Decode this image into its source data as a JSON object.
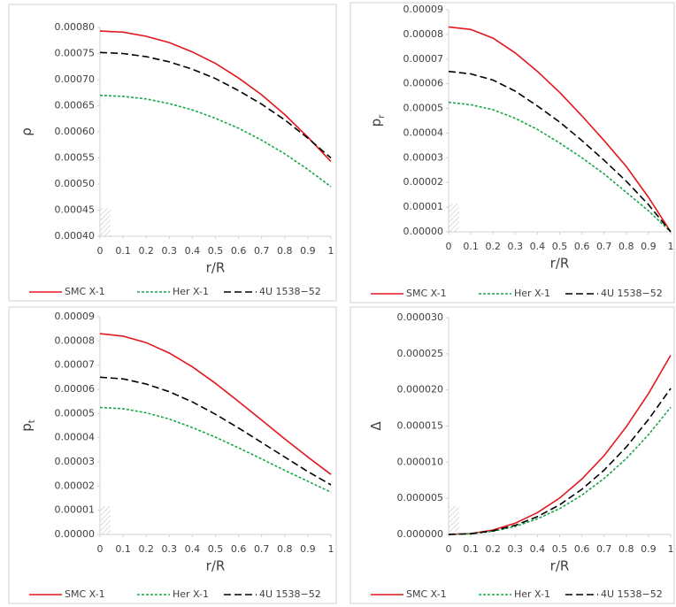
{
  "chart_data": [
    {
      "type": "line",
      "xlabel": "r/R",
      "ylabel": "ρ",
      "x": [
        0,
        0.1,
        0.2,
        0.3,
        0.4,
        0.5,
        0.6,
        0.7,
        0.8,
        0.9,
        1
      ],
      "xlim": [
        0,
        1
      ],
      "xticks": [
        0,
        0.1,
        0.2,
        0.3,
        0.4,
        0.5,
        0.6,
        0.7,
        0.8,
        0.9,
        1
      ],
      "ylim": [
        0.0004,
        0.0008
      ],
      "yticks": [
        {
          "value": 0.0004,
          "label": "0.00040"
        },
        {
          "value": 0.00045,
          "label": "0.00045"
        },
        {
          "value": 0.0005,
          "label": "0.00050"
        },
        {
          "value": 0.00055,
          "label": "0.00055"
        },
        {
          "value": 0.0006,
          "label": "0.00060"
        },
        {
          "value": 0.00065,
          "label": "0.00065"
        },
        {
          "value": 0.0007,
          "label": "0.00070"
        },
        {
          "value": 0.00075,
          "label": "0.00075"
        },
        {
          "value": 0.0008,
          "label": "0.00080"
        }
      ],
      "series": [
        {
          "name": "SMC X-1",
          "color": "#e3161d",
          "line_style": "solid",
          "values": [
            0.000793,
            0.000791,
            0.000783,
            0.000771,
            0.000753,
            0.000731,
            0.000703,
            0.000671,
            0.000633,
            0.00059,
            0.000543
          ]
        },
        {
          "name": "Her X-1",
          "color": "#1aa64a",
          "line_style": "dotted",
          "values": [
            0.00067,
            0.000668,
            0.000663,
            0.000654,
            0.000642,
            0.000626,
            0.000607,
            0.000584,
            0.000558,
            0.000528,
            0.000495
          ]
        },
        {
          "name": "4U 1538−52",
          "color": "#000000",
          "line_style": "dashed",
          "values": [
            0.000752,
            0.00075,
            0.000744,
            0.000734,
            0.00072,
            0.000702,
            0.000679,
            0.000653,
            0.000623,
            0.000588,
            0.00055
          ]
        }
      ]
    },
    {
      "type": "line",
      "xlabel": "r/R",
      "ylabel": "p",
      "ylabel_sub": "r",
      "x": [
        0,
        0.1,
        0.2,
        0.3,
        0.4,
        0.5,
        0.6,
        0.7,
        0.8,
        0.9,
        1
      ],
      "xlim": [
        0,
        1
      ],
      "xticks": [
        0,
        0.1,
        0.2,
        0.3,
        0.4,
        0.5,
        0.6,
        0.7,
        0.8,
        0.9,
        1
      ],
      "ylim": [
        0,
        9e-05
      ],
      "yticks": [
        {
          "value": 0,
          "label": "0.00000"
        },
        {
          "value": 1e-05,
          "label": "0.00001"
        },
        {
          "value": 2e-05,
          "label": "0.00002"
        },
        {
          "value": 3e-05,
          "label": "0.00003"
        },
        {
          "value": 4e-05,
          "label": "0.00004"
        },
        {
          "value": 5e-05,
          "label": "0.00005"
        },
        {
          "value": 6e-05,
          "label": "0.00006"
        },
        {
          "value": 7e-05,
          "label": "0.00007"
        },
        {
          "value": 8e-05,
          "label": "0.00008"
        },
        {
          "value": 9e-05,
          "label": "0.00009"
        }
      ],
      "series": [
        {
          "name": "SMC X-1",
          "color": "#e3161d",
          "line_style": "solid",
          "values": [
            8.3e-05,
            8.2e-05,
            7.85e-05,
            7.25e-05,
            6.5e-05,
            5.65e-05,
            4.7e-05,
            3.7e-05,
            2.65e-05,
            1.4e-05,
            0
          ]
        },
        {
          "name": "Her X-1",
          "color": "#1aa64a",
          "line_style": "dotted",
          "values": [
            5.25e-05,
            5.15e-05,
            4.95e-05,
            4.6e-05,
            4.15e-05,
            3.6e-05,
            3e-05,
            2.35e-05,
            1.6e-05,
            8.5e-06,
            0
          ]
        },
        {
          "name": "4U 1538−52",
          "color": "#000000",
          "line_style": "dashed",
          "values": [
            6.5e-05,
            6.4e-05,
            6.15e-05,
            5.7e-05,
            5.1e-05,
            4.45e-05,
            3.7e-05,
            2.9e-05,
            2.05e-05,
            1.1e-05,
            0
          ]
        }
      ]
    },
    {
      "type": "line",
      "xlabel": "r/R",
      "ylabel": "p",
      "ylabel_sub": "t",
      "x": [
        0,
        0.1,
        0.2,
        0.3,
        0.4,
        0.5,
        0.6,
        0.7,
        0.8,
        0.9,
        1
      ],
      "xlim": [
        0,
        1
      ],
      "xticks": [
        0,
        0.1,
        0.2,
        0.3,
        0.4,
        0.5,
        0.6,
        0.7,
        0.8,
        0.9,
        1
      ],
      "ylim": [
        0,
        9e-05
      ],
      "yticks": [
        {
          "value": 0,
          "label": "0.00000"
        },
        {
          "value": 1e-05,
          "label": "0.00001"
        },
        {
          "value": 2e-05,
          "label": "0.00002"
        },
        {
          "value": 3e-05,
          "label": "0.00003"
        },
        {
          "value": 4e-05,
          "label": "0.00004"
        },
        {
          "value": 5e-05,
          "label": "0.00005"
        },
        {
          "value": 6e-05,
          "label": "0.00006"
        },
        {
          "value": 7e-05,
          "label": "0.00007"
        },
        {
          "value": 8e-05,
          "label": "0.00008"
        },
        {
          "value": 9e-05,
          "label": "0.00009"
        }
      ],
      "series": [
        {
          "name": "SMC X-1",
          "color": "#e3161d",
          "line_style": "solid",
          "values": [
            8.3e-05,
            8.2e-05,
            7.93e-05,
            7.5e-05,
            6.93e-05,
            6.25e-05,
            5.5e-05,
            4.73e-05,
            3.95e-05,
            3.2e-05,
            2.48e-05
          ]
        },
        {
          "name": "Her X-1",
          "color": "#1aa64a",
          "line_style": "dotted",
          "values": [
            5.25e-05,
            5.2e-05,
            5.03e-05,
            4.77e-05,
            4.42e-05,
            4.02e-05,
            3.58e-05,
            3.12e-05,
            2.65e-05,
            2.2e-05,
            1.75e-05
          ]
        },
        {
          "name": "4U 1538−52",
          "color": "#000000",
          "line_style": "dashed",
          "values": [
            6.5e-05,
            6.43e-05,
            6.22e-05,
            5.9e-05,
            5.48e-05,
            4.97e-05,
            4.4e-05,
            3.8e-05,
            3.2e-05,
            2.6e-05,
            2.05e-05
          ]
        }
      ]
    },
    {
      "type": "line",
      "xlabel": "r/R",
      "ylabel": "Δ",
      "x": [
        0,
        0.1,
        0.2,
        0.3,
        0.4,
        0.5,
        0.6,
        0.7,
        0.8,
        0.9,
        1
      ],
      "xlim": [
        0,
        1
      ],
      "xticks": [
        0,
        0.1,
        0.2,
        0.3,
        0.4,
        0.5,
        0.6,
        0.7,
        0.8,
        0.9,
        1
      ],
      "ylim": [
        0,
        3e-05
      ],
      "yticks": [
        {
          "value": 0,
          "label": "0.000000"
        },
        {
          "value": 5e-06,
          "label": "0.000005"
        },
        {
          "value": 1e-05,
          "label": "0.000010"
        },
        {
          "value": 1.5e-05,
          "label": "0.000015"
        },
        {
          "value": 2e-05,
          "label": "0.000020"
        },
        {
          "value": 2.5e-05,
          "label": "0.000025"
        },
        {
          "value": 3e-05,
          "label": "0.000030"
        }
      ],
      "series": [
        {
          "name": "SMC X-1",
          "color": "#e3161d",
          "line_style": "solid",
          "values": [
            0,
            1.2e-07,
            6.1e-07,
            1.55e-06,
            3.03e-06,
            5.03e-06,
            7.66e-06,
            1.09e-05,
            1.49e-05,
            1.95e-05,
            2.48e-05
          ]
        },
        {
          "name": "Her X-1",
          "color": "#1aa64a",
          "line_style": "dotted",
          "values": [
            0,
            9e-08,
            4.3e-07,
            1.1e-06,
            2.15e-06,
            3.57e-06,
            5.44e-06,
            7.74e-06,
            1.05e-05,
            1.38e-05,
            1.76e-05
          ]
        },
        {
          "name": "4U 1538−52",
          "color": "#000000",
          "line_style": "dashed",
          "values": [
            0,
            1e-07,
            5e-07,
            1.26e-06,
            2.46e-06,
            4.1e-06,
            6.24e-06,
            8.89e-06,
            1.21e-05,
            1.59e-05,
            2.02e-05
          ]
        }
      ]
    }
  ]
}
